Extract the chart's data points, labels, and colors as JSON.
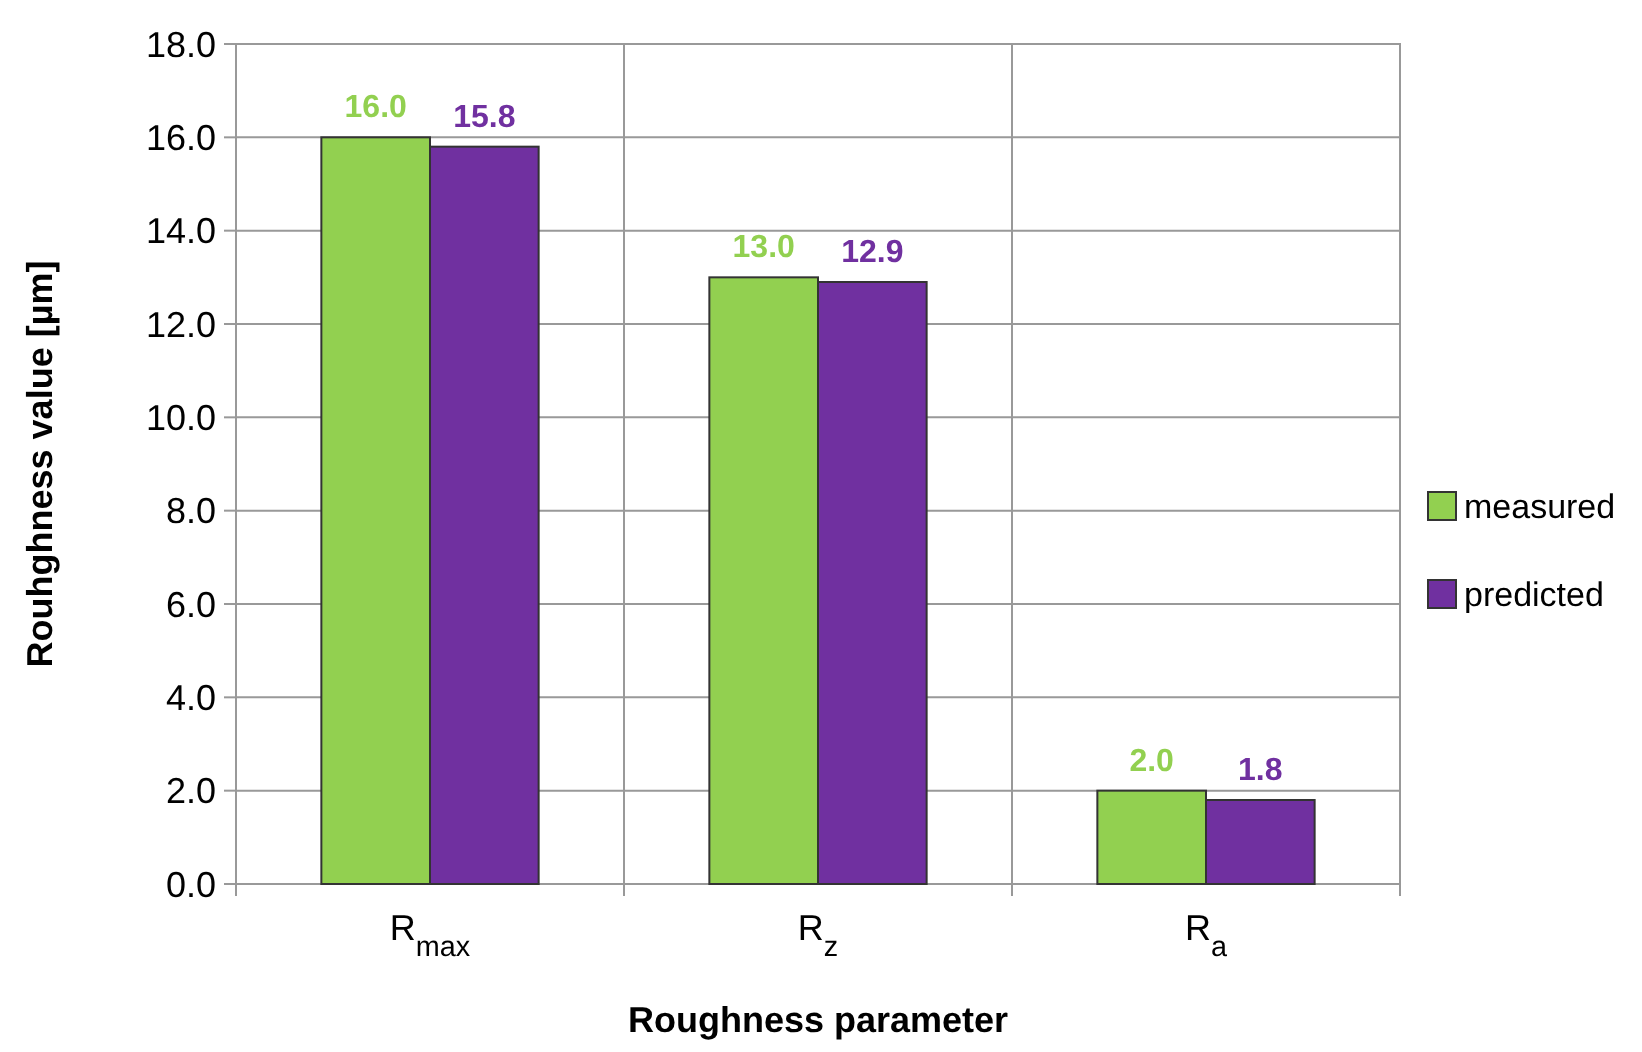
{
  "chart_data": {
    "type": "bar",
    "xlabel": "Roughness parameter",
    "ylabel": "Rouhghness  value [µm]",
    "categories": [
      "R$_{max}$",
      "R$_{z}$",
      "R$_{a}$"
    ],
    "series": [
      {
        "name": "measured",
        "color": "#92d050",
        "values": [
          16.0,
          13.0,
          2.0
        ],
        "value_labels": [
          "16.0",
          "13.0",
          "2.0"
        ]
      },
      {
        "name": "predicted",
        "color": "#7030a0",
        "values": [
          15.8,
          12.9,
          1.8
        ],
        "value_labels": [
          "15.8",
          "12.9",
          "1.8"
        ]
      }
    ],
    "ylim": [
      0,
      18
    ],
    "yticks": [
      {
        "value": 0,
        "label": "0.0"
      },
      {
        "value": 2,
        "label": "2.0"
      },
      {
        "value": 4,
        "label": "4.0"
      },
      {
        "value": 6,
        "label": "6.0"
      },
      {
        "value": 8,
        "label": "8.0"
      },
      {
        "value": 10,
        "label": "10.0"
      },
      {
        "value": 12,
        "label": "12.0"
      },
      {
        "value": 14,
        "label": "14.0"
      },
      {
        "value": 16,
        "label": "16.0"
      },
      {
        "value": 18,
        "label": "18.0"
      }
    ],
    "grid": true,
    "legend": "right"
  }
}
